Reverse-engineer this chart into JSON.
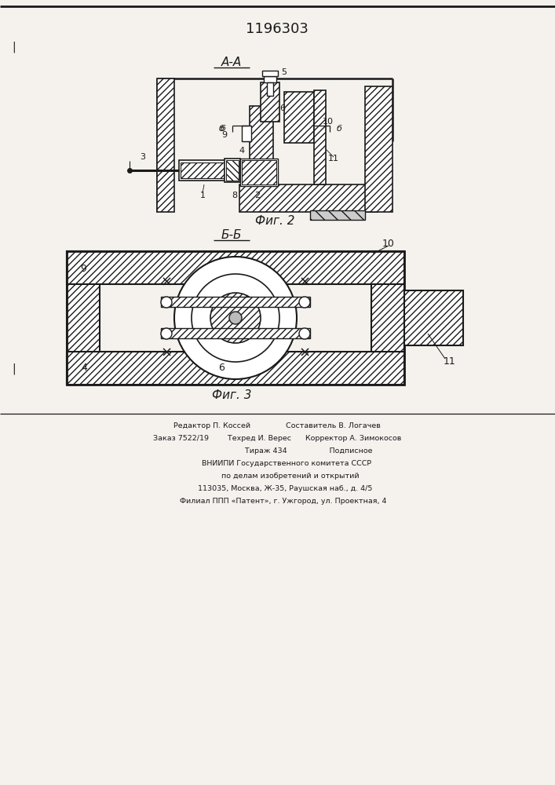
{
  "title": "1196303",
  "fig2_label": "А-А",
  "fig2_caption": "Фиг. 2",
  "fig3_label": "Б-Б",
  "fig3_caption": "Фиг. 3",
  "background_color": "#f5f2ee",
  "line_color": "#1a1a1a",
  "footer_lines": [
    "Редактор П. Коссей               Составитель В. Логачев",
    "Заказ 7522/19        Техред И. Верес      Корректор А. Зимокосов",
    "                           Тираж 434                  Подписное",
    "        ВНИИПИ Государственного комитета СССР",
    "           по делам изобретений и открытий",
    "       113035, Москва, Ж-35, Раушская наб., д. 4/5",
    "     Филиал ППП «Патент», г. Ужгород, ул. Проектная, 4"
  ]
}
